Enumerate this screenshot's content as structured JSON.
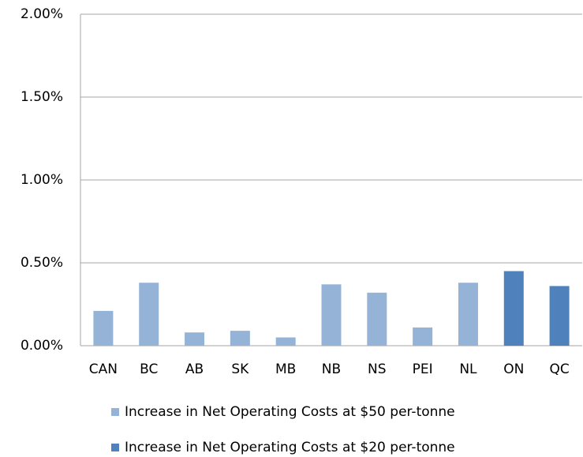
{
  "chart_data": {
    "type": "bar",
    "categories": [
      "CAN",
      "BC",
      "AB",
      "SK",
      "MB",
      "NB",
      "NS",
      "PEI",
      "NL",
      "ON",
      "QC"
    ],
    "series": [
      {
        "name": "Increase in Net Operating Costs at $50 per-tonne",
        "color": "#95b3d7",
        "values": [
          0.21,
          0.38,
          0.08,
          0.09,
          0.05,
          0.37,
          0.32,
          0.11,
          0.38,
          null,
          null
        ]
      },
      {
        "name": "Increase in Net Operating Costs at $20 per-tonne",
        "color": "#4f81bd",
        "values": [
          null,
          null,
          null,
          null,
          null,
          null,
          null,
          null,
          null,
          0.45,
          0.36
        ]
      }
    ],
    "ylim": [
      0,
      2
    ],
    "yticks": [
      {
        "value": 0,
        "label": "0.00%"
      },
      {
        "value": 0.5,
        "label": "0.50%"
      },
      {
        "value": 1,
        "label": "1.00%"
      },
      {
        "value": 1.5,
        "label": "1.50%"
      },
      {
        "value": 2,
        "label": "2.00%"
      }
    ],
    "grid": true,
    "legend": "bottom"
  }
}
